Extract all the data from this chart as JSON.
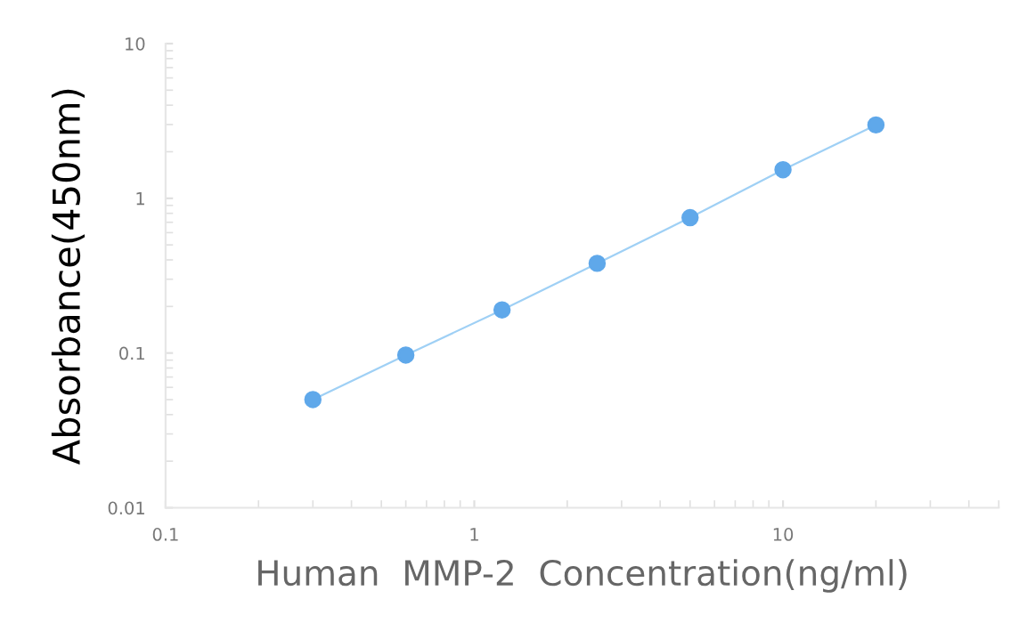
{
  "chart_data": {
    "type": "scatter",
    "xlabel": "Human  MMP-2  Concentration(ng/ml)",
    "ylabel": "Absorbance(450nm)",
    "log": "xy",
    "xlim": [
      0.1,
      50
    ],
    "ylim": [
      0.01,
      10
    ],
    "xticks": [
      0.1,
      1,
      10
    ],
    "yticks": [
      0.01,
      0.1,
      1,
      10
    ],
    "grid": false,
    "legend": false,
    "series": [
      {
        "type": "line",
        "line_style": "solid",
        "color": "#9fd0f5",
        "x": [
          0.3,
          0.6,
          1.23,
          2.5,
          5,
          10,
          20
        ],
        "values": [
          0.05,
          0.097,
          0.19,
          0.38,
          0.75,
          1.53,
          2.98
        ]
      },
      {
        "marker": "circle",
        "color": "#5fa8ea",
        "x": [
          0.3,
          0.6,
          1.23,
          2.5,
          5,
          10,
          20
        ],
        "values": [
          0.05,
          0.097,
          0.19,
          0.38,
          0.75,
          1.53,
          2.98
        ]
      }
    ]
  }
}
